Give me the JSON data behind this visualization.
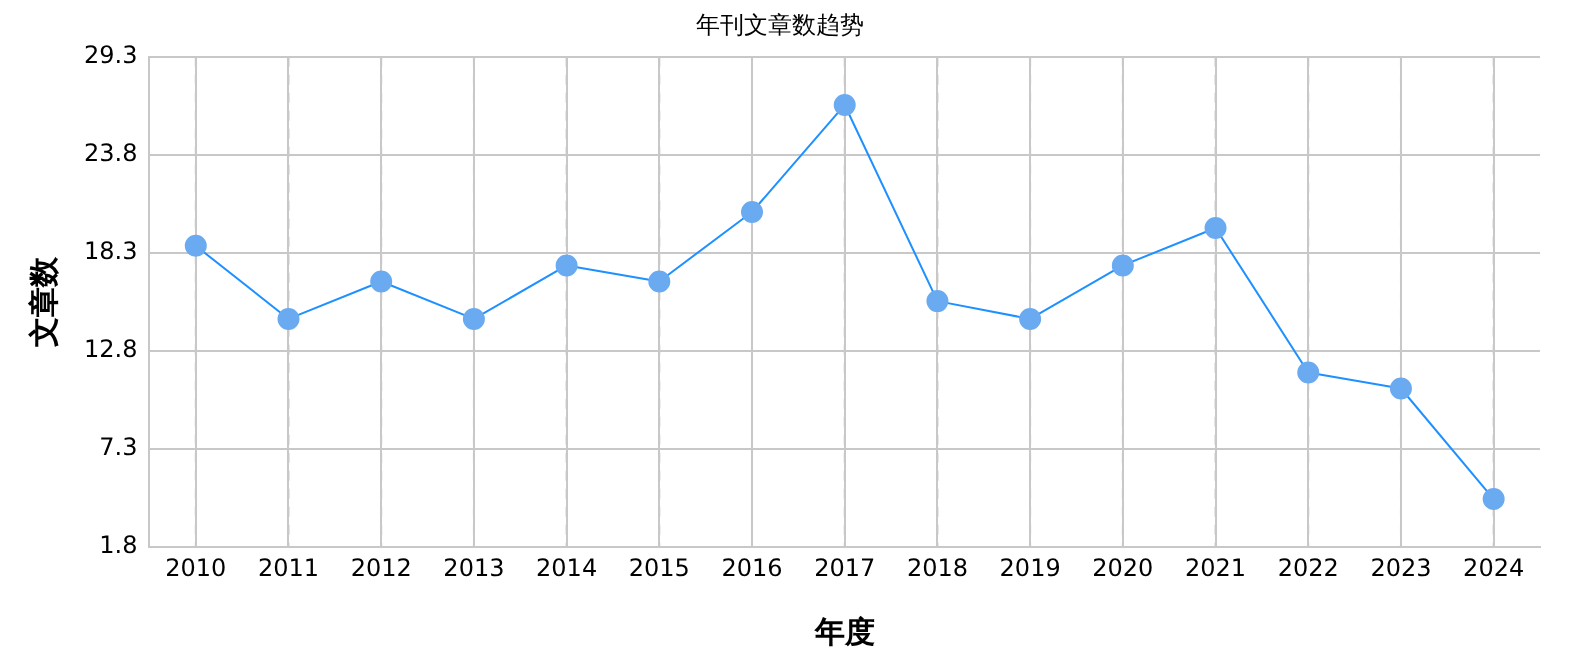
{
  "chart_data": {
    "type": "line",
    "title": "年刊文章数趋势",
    "xlabel": "年度",
    "ylabel": "文章数",
    "categories": [
      "2010",
      "2011",
      "2012",
      "2013",
      "2014",
      "2015",
      "2016",
      "2017",
      "2018",
      "2019",
      "2020",
      "2021",
      "2022",
      "2023",
      "2024"
    ],
    "series": [
      {
        "color": "#1e90ff",
        "values": [
          18.7,
          14.6,
          16.7,
          14.6,
          17.6,
          16.7,
          20.6,
          26.6,
          15.6,
          14.6,
          17.6,
          19.7,
          11.6,
          10.7,
          4.5
        ]
      }
    ],
    "ylim": [
      1.8,
      29.3
    ],
    "yticks": [
      1.8,
      7.3,
      12.8,
      18.3,
      23.8,
      29.3
    ],
    "grid": true,
    "marker": "circle",
    "line_style": "solid",
    "legend": false
  }
}
